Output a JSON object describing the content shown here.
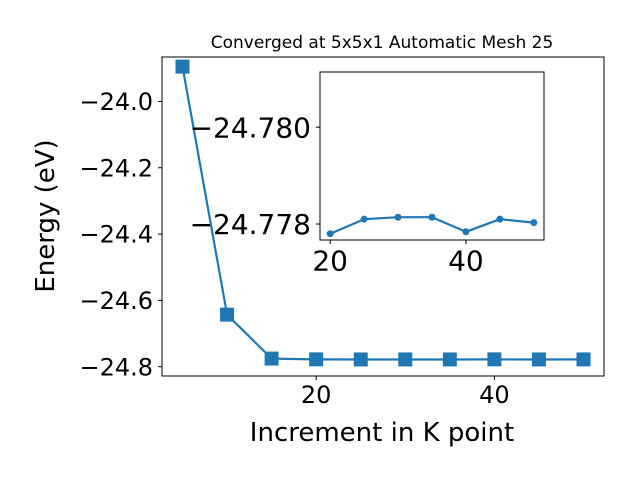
{
  "chart_data": [
    {
      "type": "line",
      "title": "Converged at 5x5x1 Automatic Mesh 25",
      "xlabel": "Increment in K point",
      "ylabel": "Energy (eV)",
      "xlim": [
        2.7,
        52.3
      ],
      "ylim": [
        -24.828,
        -23.866
      ],
      "xticks": [
        20,
        40
      ],
      "xtick_labels": [
        "20",
        "40"
      ],
      "yticks": [
        -24.0,
        -24.2,
        -24.4,
        -24.6,
        -24.8
      ],
      "ytick_labels": [
        "−24.0",
        "−24.2",
        "−24.4",
        "−24.6",
        "−24.8"
      ],
      "series": [
        {
          "x": [
            5,
            10,
            15,
            20,
            25,
            30,
            35,
            40,
            45,
            50
          ],
          "y": [
            -23.895,
            -24.643,
            -24.7755,
            -24.7778,
            -24.7781,
            -24.7781,
            -24.7781,
            -24.7778,
            -24.7781,
            -24.778
          ],
          "color": "#1f77b4",
          "marker": "square"
        }
      ]
    },
    {
      "type": "line",
      "title": "",
      "xlabel": "",
      "ylabel": "",
      "xlim": [
        18.5,
        51.5
      ],
      "ylim": [
        -24.77767,
        -24.78114
      ],
      "xticks": [
        20,
        40
      ],
      "xtick_labels": [
        "20",
        "40"
      ],
      "yticks": [
        -24.78,
        -24.778
      ],
      "ytick_labels": [
        "−24.780",
        "−24.778"
      ],
      "series": [
        {
          "x": [
            20,
            25,
            30,
            35,
            40,
            45,
            50
          ],
          "y": [
            -24.7778,
            -24.7781,
            -24.77814,
            -24.77814,
            -24.77784,
            -24.7781,
            -24.77803
          ],
          "color": "#1f77b4",
          "marker": "circle"
        }
      ]
    }
  ]
}
